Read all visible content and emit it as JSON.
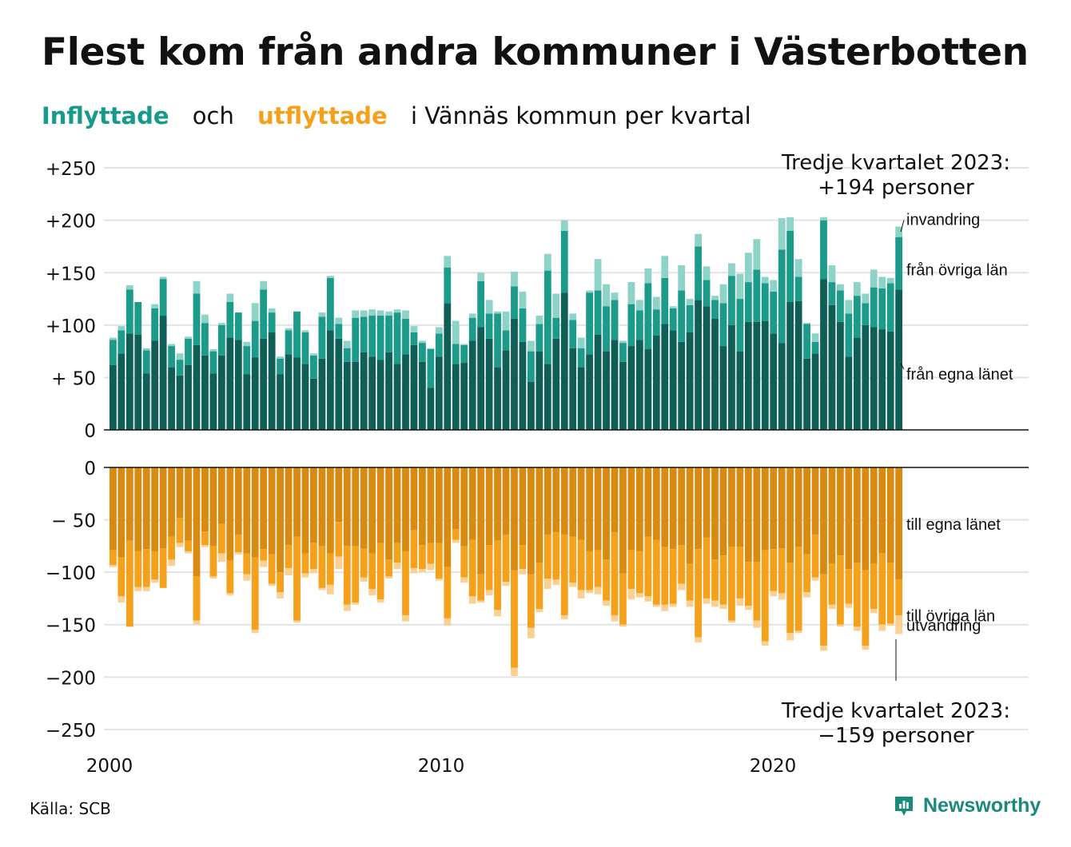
{
  "title": "Flest kom från andra kommuner i Västerbotten",
  "subtitle": {
    "inflow": "Inflyttade",
    "and": "och",
    "outflow": "utflyttade",
    "rest": "i Vännäs  kommun  per  kvartal"
  },
  "source": "Källa: SCB",
  "brand": "Newsworthy",
  "colors": {
    "in_own": "#105f57",
    "in_other": "#1c9a8a",
    "in_immig": "#8ed3c8",
    "out_own": "#d98a10",
    "out_other": "#f5a11c",
    "out_emig": "#fcd092",
    "grid": "#e3e3e3",
    "axis": "#111111",
    "brand": "#1a8a7d"
  },
  "chart_data": {
    "type": "bar",
    "stacked": true,
    "panels": 2,
    "x_ticks": [
      2000,
      2010,
      2020
    ],
    "x_start": 2000,
    "quarters": 95,
    "top_panel": {
      "ylim": [
        0,
        250
      ],
      "yticks": [
        0,
        50,
        100,
        150,
        200,
        250
      ],
      "ytick_labels": [
        "0",
        "+ 50",
        "+100",
        "+150",
        "+200",
        "+250"
      ],
      "series": [
        {
          "name": "från egna länet",
          "values": [
            62,
            73,
            92,
            91,
            54,
            85,
            109,
            60,
            52,
            62,
            81,
            71,
            54,
            71,
            88,
            86,
            53,
            69,
            87,
            93,
            53,
            72,
            69,
            63,
            49,
            68,
            95,
            87,
            65,
            65,
            74,
            70,
            67,
            74,
            63,
            72,
            81,
            65,
            40,
            70,
            121,
            63,
            64,
            85,
            98,
            87,
            60,
            76,
            106,
            84,
            46,
            75,
            63,
            87,
            131,
            78,
            60,
            72,
            91,
            75,
            86,
            65,
            80,
            86,
            77,
            90,
            101,
            95,
            84,
            93,
            124,
            118,
            106,
            80,
            100,
            75,
            103,
            103,
            104,
            92,
            83,
            122,
            123,
            68,
            73,
            144,
            119,
            103,
            70,
            88,
            100,
            98,
            96,
            94,
            134
          ]
        },
        {
          "name": "från övriga län",
          "values": [
            24,
            22,
            42,
            31,
            22,
            31,
            35,
            20,
            15,
            25,
            49,
            31,
            21,
            29,
            34,
            26,
            27,
            35,
            47,
            19,
            15,
            23,
            44,
            30,
            22,
            40,
            50,
            14,
            13,
            42,
            34,
            39,
            42,
            35,
            49,
            34,
            12,
            18,
            37,
            22,
            34,
            19,
            17,
            22,
            44,
            24,
            51,
            19,
            31,
            32,
            29,
            26,
            89,
            20,
            59,
            27,
            18,
            59,
            42,
            43,
            38,
            18,
            40,
            28,
            63,
            25,
            44,
            21,
            49,
            26,
            51,
            25,
            18,
            41,
            47,
            50,
            38,
            50,
            36,
            40,
            89,
            68,
            23,
            33,
            11,
            56,
            22,
            30,
            41,
            40,
            21,
            38,
            39,
            46,
            50
          ]
        },
        {
          "name": "invandring",
          "values": [
            2,
            4,
            4,
            0,
            2,
            4,
            2,
            2,
            6,
            2,
            12,
            8,
            2,
            2,
            8,
            0,
            4,
            17,
            8,
            4,
            2,
            2,
            0,
            2,
            2,
            4,
            2,
            6,
            7,
            7,
            6,
            6,
            5,
            4,
            3,
            8,
            6,
            2,
            1,
            6,
            11,
            22,
            1,
            4,
            8,
            13,
            2,
            18,
            14,
            16,
            10,
            8,
            16,
            23,
            10,
            6,
            10,
            2,
            30,
            21,
            7,
            2,
            21,
            10,
            14,
            12,
            21,
            2,
            24,
            6,
            12,
            13,
            4,
            18,
            12,
            24,
            28,
            29,
            6,
            11,
            30,
            13,
            17,
            1,
            8,
            3,
            16,
            6,
            13,
            13,
            9,
            17,
            11,
            5,
            10
          ]
        }
      ]
    },
    "bottom_panel": {
      "ylim": [
        -250,
        0
      ],
      "yticks": [
        0,
        -50,
        -100,
        -150,
        -200,
        -250
      ],
      "ytick_labels": [
        "0",
        "− 50",
        "−100",
        "−150",
        "−200",
        "−250"
      ],
      "series": [
        {
          "name": "till egna länet",
          "values": [
            -79,
            -86,
            -70,
            -80,
            -78,
            -80,
            -77,
            -66,
            -48,
            -70,
            -104,
            -61,
            -75,
            -54,
            -89,
            -64,
            -82,
            -86,
            -78,
            -83,
            -100,
            -74,
            -66,
            -82,
            -72,
            -75,
            -82,
            -52,
            -75,
            -75,
            -77,
            -82,
            -72,
            -88,
            -72,
            -80,
            -60,
            -74,
            -72,
            -72,
            -95,
            -59,
            -75,
            -69,
            -102,
            -74,
            -70,
            -64,
            -98,
            -74,
            -102,
            -91,
            -64,
            -62,
            -64,
            -66,
            -69,
            -80,
            -79,
            -88,
            -62,
            -101,
            -79,
            -80,
            -66,
            -69,
            -76,
            -78,
            -74,
            -92,
            -78,
            -67,
            -88,
            -84,
            -76,
            -76,
            -90,
            -90,
            -79,
            -78,
            -77,
            -91,
            -76,
            -83,
            -64,
            -102,
            -92,
            -84,
            -97,
            -91,
            -98,
            -92,
            -82,
            -91,
            -107
          ]
        },
        {
          "name": "till övriga län",
          "values": [
            -14,
            -37,
            -82,
            -34,
            -36,
            -27,
            -38,
            -22,
            -24,
            -10,
            -42,
            -13,
            -29,
            -28,
            -31,
            -17,
            -20,
            -69,
            -11,
            -28,
            -19,
            -22,
            -80,
            -19,
            -25,
            -40,
            -30,
            -33,
            -56,
            -54,
            -28,
            -34,
            -54,
            -16,
            -19,
            -61,
            -36,
            -23,
            -20,
            -34,
            -49,
            -10,
            -30,
            -54,
            -25,
            -43,
            -66,
            -45,
            -93,
            -23,
            -51,
            -44,
            -42,
            -45,
            -77,
            -44,
            -48,
            -37,
            -35,
            -39,
            -79,
            -49,
            -37,
            -40,
            -57,
            -62,
            -55,
            -52,
            -37,
            -35,
            -84,
            -58,
            -39,
            -47,
            -70,
            -49,
            -42,
            -56,
            -87,
            -40,
            -43,
            -67,
            -80,
            -36,
            -41,
            -68,
            -39,
            -66,
            -33,
            -61,
            -72,
            -43,
            -68,
            -58,
            -34
          ]
        },
        {
          "name": "utvandring",
          "values": [
            -2,
            -6,
            0,
            -4,
            -4,
            -3,
            0,
            -6,
            -4,
            -2,
            -4,
            -2,
            -2,
            -8,
            -2,
            -2,
            -6,
            -3,
            -6,
            -2,
            -6,
            -7,
            -2,
            -4,
            -4,
            -2,
            -9,
            -12,
            -6,
            -2,
            -4,
            -6,
            -3,
            -2,
            -6,
            -6,
            -5,
            -3,
            -6,
            -2,
            -7,
            -3,
            -5,
            -7,
            -2,
            -5,
            -6,
            -4,
            -8,
            -5,
            -10,
            -3,
            -10,
            -5,
            -4,
            -4,
            -8,
            -3,
            -7,
            -5,
            -6,
            -2,
            -10,
            -4,
            -5,
            -2,
            -6,
            -3,
            -6,
            -6,
            -5,
            -5,
            -6,
            -4,
            -2,
            -7,
            -4,
            -7,
            -4,
            -5,
            -6,
            -7,
            -2,
            -5,
            -3,
            -5,
            -4,
            -2,
            -4,
            -4,
            -4,
            -4,
            -6,
            -2,
            -18
          ]
        }
      ]
    },
    "annotations": {
      "top": "Tredje kvartalet 2023:\n+194 personer",
      "bottom": "Tredje kvartalet 2023:\n−159 personer"
    }
  }
}
